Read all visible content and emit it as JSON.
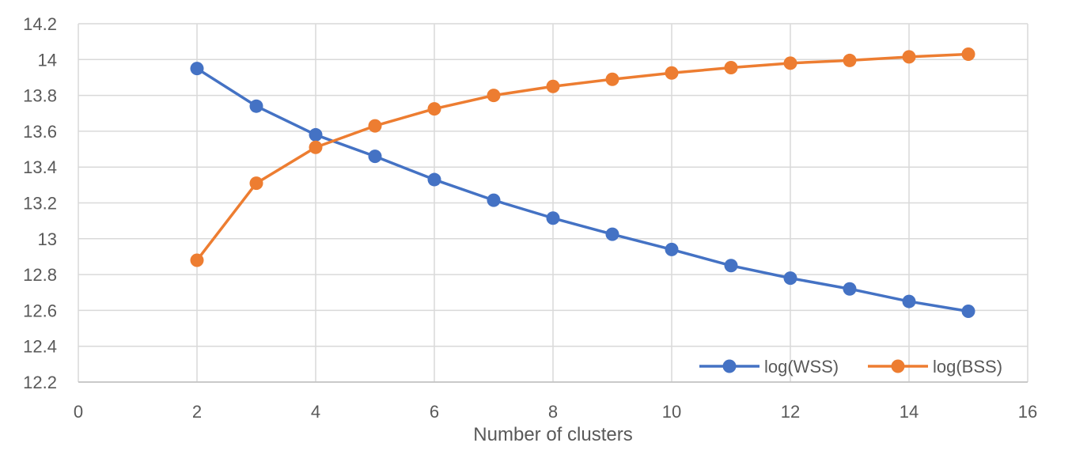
{
  "chart_data": {
    "type": "line",
    "title": "",
    "xlabel": "Number of clusters",
    "ylabel": "",
    "xlim": [
      0,
      16
    ],
    "ylim": [
      12.2,
      14.2
    ],
    "xticks": [
      0,
      2,
      4,
      6,
      8,
      10,
      12,
      14,
      16
    ],
    "yticks": [
      12.2,
      12.4,
      12.6,
      12.8,
      13,
      13.2,
      13.4,
      13.6,
      13.8,
      14,
      14.2
    ],
    "xtick_labels": [
      "0",
      "2",
      "4",
      "6",
      "8",
      "10",
      "12",
      "14",
      "16"
    ],
    "ytick_labels": [
      "12.2",
      "12.4",
      "12.6",
      "12.8",
      "13",
      "13.2",
      "13.4",
      "13.6",
      "13.8",
      "14",
      "14.2"
    ],
    "grid": true,
    "legend_position": "bottom-right",
    "x": [
      2,
      3,
      4,
      5,
      6,
      7,
      8,
      9,
      10,
      11,
      12,
      13,
      14,
      15
    ],
    "series": [
      {
        "name": "log(WSS)",
        "color": "#4472C4",
        "values": [
          13.95,
          13.74,
          13.58,
          13.46,
          13.33,
          13.215,
          13.115,
          13.025,
          12.94,
          12.85,
          12.78,
          12.72,
          12.65,
          12.595
        ]
      },
      {
        "name": "log(BSS)",
        "color": "#ED7D31",
        "values": [
          12.88,
          13.31,
          13.51,
          13.63,
          13.725,
          13.8,
          13.85,
          13.89,
          13.925,
          13.955,
          13.98,
          13.995,
          14.015,
          14.03
        ]
      }
    ]
  }
}
